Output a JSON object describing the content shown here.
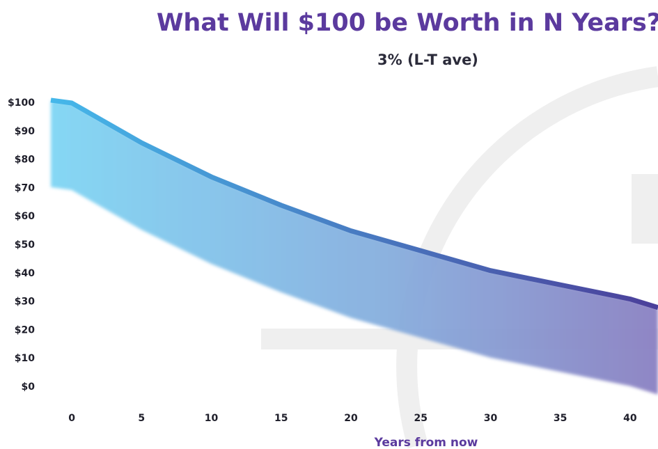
{
  "chart_data": {
    "type": "line",
    "title": "What Will $100 be Worth in N Years?",
    "x_label": "Years from now",
    "legend_position": "top",
    "series": [
      {
        "name": "3% (L-T ave)",
        "color": [
          "#45b8ea",
          "#4b3f9a"
        ],
        "x": [
          -1.5,
          0,
          5,
          10,
          15,
          20,
          25,
          30,
          35,
          40,
          42
        ],
        "values": [
          101,
          100,
          86,
          74,
          64,
          55,
          48,
          41,
          36,
          31,
          28
        ]
      }
    ],
    "xlim": [
      -1.5,
      42
    ],
    "ylim": [
      0,
      100
    ],
    "xticks": [
      0,
      5,
      10,
      15,
      20,
      25,
      30,
      35,
      40
    ],
    "yticks": [
      {
        "value": 0,
        "label": "$0"
      },
      {
        "value": 10,
        "label": "$10"
      },
      {
        "value": 20,
        "label": "$20"
      },
      {
        "value": 30,
        "label": "$30"
      },
      {
        "value": 40,
        "label": "$40"
      },
      {
        "value": 50,
        "label": "$50"
      },
      {
        "value": 60,
        "label": "$60"
      },
      {
        "value": 70,
        "label": "$70"
      },
      {
        "value": 80,
        "label": "$80"
      },
      {
        "value": 90,
        "label": "$90"
      },
      {
        "value": 100,
        "label": "$100"
      }
    ]
  }
}
